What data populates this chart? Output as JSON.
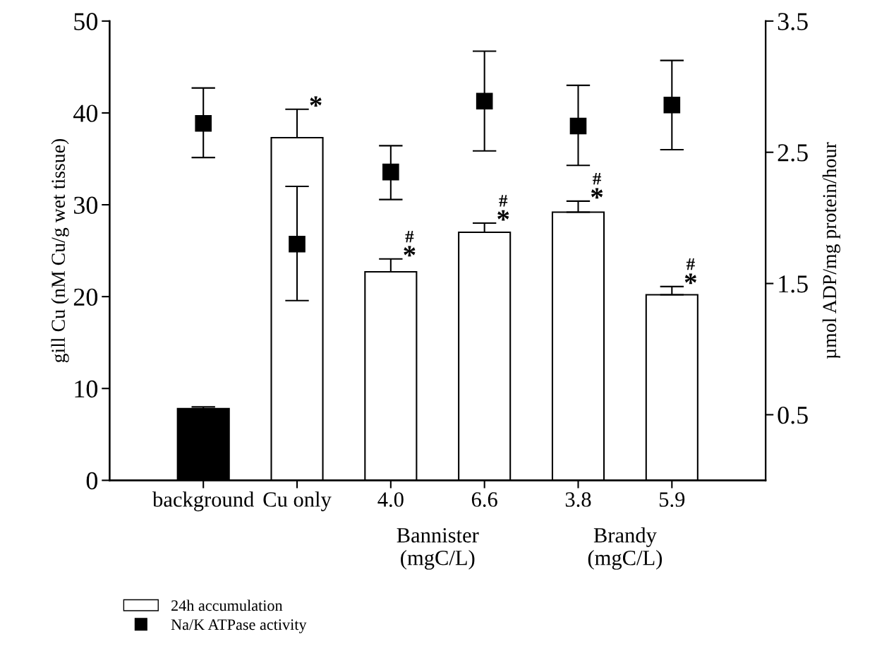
{
  "chart_data": {
    "type": "bar",
    "categories": [
      "background",
      "Cu only",
      "4.0",
      "6.6",
      "3.8",
      "5.9"
    ],
    "ylabel": "gill Cu (nM Cu/g wet tissue)",
    "y2label": "µmol ADP/mg protein/hour",
    "ylim": [
      0,
      50
    ],
    "yticks": [
      0,
      10,
      20,
      30,
      40,
      50
    ],
    "y2lim": [
      0,
      3.5
    ],
    "y2ticks": [
      0.5,
      1.5,
      2.5,
      3.5
    ],
    "series": [
      {
        "name": "24h accumulation",
        "color": "#ffffff",
        "colors": [
          "#000000",
          "#ffffff",
          "#ffffff",
          "#ffffff",
          "#ffffff",
          "#ffffff"
        ],
        "values": [
          7.8,
          37.3,
          22.7,
          27.0,
          29.2,
          20.2
        ],
        "errors": [
          [
            7.8,
            8.0
          ],
          [
            37.3,
            40.4
          ],
          [
            22.7,
            24.1
          ],
          [
            27.0,
            28.0
          ],
          [
            29.2,
            30.4
          ],
          [
            20.2,
            21.1
          ]
        ]
      },
      {
        "name": "Na/K ATPase activity",
        "type": "scatter",
        "axis": "y2",
        "marker": "square",
        "color": "#000000",
        "values": [
          2.72,
          1.8,
          2.35,
          2.89,
          2.7,
          2.86
        ],
        "errors": [
          [
            2.46,
            2.99
          ],
          [
            1.37,
            2.24
          ],
          [
            2.14,
            2.55
          ],
          [
            2.51,
            3.27
          ],
          [
            2.4,
            3.01
          ],
          [
            2.52,
            3.2
          ]
        ]
      }
    ],
    "annotations": [
      {
        "text": "*",
        "x": "Cu only",
        "y": 40.4
      },
      {
        "text": "*",
        "x": "4.0",
        "y": 24.1
      },
      {
        "text": "#",
        "x": "4.0",
        "y": 24.1
      },
      {
        "text": "*",
        "x": "6.6",
        "y": 28.0
      },
      {
        "text": "#",
        "x": "6.6",
        "y": 28.0
      },
      {
        "text": "*",
        "x": "3.8",
        "y": 30.4
      },
      {
        "text": "#",
        "x": "3.8",
        "y": 30.4
      },
      {
        "text": "*",
        "x": "5.9",
        "y": 21.1
      },
      {
        "text": "#",
        "x": "5.9",
        "y": 21.1
      },
      "Bannister\n(mgC/L)",
      "Brandy\n(mgC/L)"
    ],
    "legend": "bottom left",
    "grid": false
  }
}
